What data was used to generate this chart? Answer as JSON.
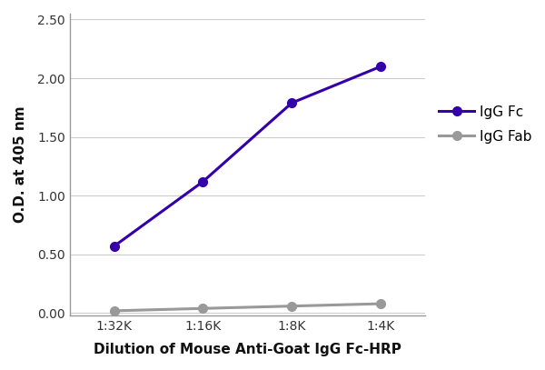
{
  "x_labels": [
    "1:32K",
    "1:16K",
    "1:8K",
    "1:4K"
  ],
  "x_positions": [
    0,
    1,
    2,
    3
  ],
  "igg_fc_values": [
    0.57,
    1.12,
    1.79,
    2.1
  ],
  "igg_fab_values": [
    0.02,
    0.04,
    0.06,
    0.08
  ],
  "igg_fc_color": "#3300aa",
  "igg_fab_color": "#999999",
  "fc_label": "IgG Fc",
  "fab_label": "IgG Fab",
  "xlabel": "Dilution of Mouse Anti-Goat IgG Fc-HRP",
  "ylabel": "O.D. at 405 nm",
  "ylim": [
    -0.02,
    2.55
  ],
  "yticks": [
    0.0,
    0.5,
    1.0,
    1.5,
    2.0,
    2.5
  ],
  "title": "",
  "line_width": 2.2,
  "marker": "o",
  "marker_size": 7,
  "background_color": "#ffffff",
  "grid_color": "#cccccc",
  "spine_color": "#999999"
}
